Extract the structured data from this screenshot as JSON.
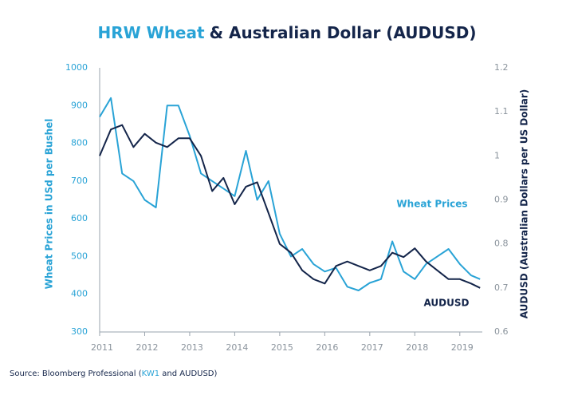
{
  "chart_data": {
    "type": "line",
    "title": [
      "HRW Wheat",
      "& Australian Dollar (AUDUSD)"
    ],
    "title_colors": [
      "#29a3d6",
      "#14254a"
    ],
    "source": [
      "Source: Bloomberg Professional (",
      "KW1",
      " and AUDUSD)"
    ],
    "y_label": "Wheat Prices in USd per Bushel",
    "y2_label": "AUDUSD (Australian Dollars per US Dollar)",
    "xlim": [
      2011,
      2019.5
    ],
    "xticks": [
      2011,
      2012,
      2013,
      2014,
      2015,
      2016,
      2017,
      2018,
      2019
    ],
    "ylim": [
      300,
      1000
    ],
    "yticks": [
      300,
      400,
      500,
      600,
      700,
      800,
      900,
      1000
    ],
    "y2lim": [
      0.6,
      1.2
    ],
    "y2ticks": [
      0.6,
      0.7,
      0.8,
      0.9,
      1,
      1.1,
      1.2
    ],
    "x": [
      2011,
      2011.25,
      2011.5,
      2011.75,
      2012,
      2012.25,
      2012.5,
      2012.75,
      2013,
      2013.25,
      2013.5,
      2013.75,
      2014,
      2014.25,
      2014.5,
      2014.75,
      2015,
      2015.25,
      2015.5,
      2015.75,
      2016,
      2016.25,
      2016.5,
      2016.75,
      2017,
      2017.25,
      2017.5,
      2017.75,
      2018,
      2018.25,
      2018.5,
      2018.75,
      2019,
      2019.25,
      2019.45
    ],
    "series": [
      {
        "name": "Wheat Prices",
        "color": "#29a3d6",
        "axis": "y",
        "values": [
          870,
          920,
          720,
          700,
          650,
          630,
          900,
          900,
          820,
          720,
          700,
          680,
          660,
          780,
          650,
          700,
          560,
          500,
          520,
          480,
          460,
          470,
          420,
          410,
          430,
          440,
          540,
          460,
          440,
          480,
          500,
          520,
          480,
          450,
          440
        ]
      },
      {
        "name": "AUDUSD",
        "color": "#14254a",
        "axis": "y2",
        "values": [
          1.0,
          1.06,
          1.07,
          1.02,
          1.05,
          1.03,
          1.02,
          1.04,
          1.04,
          1.0,
          0.92,
          0.95,
          0.89,
          0.93,
          0.94,
          0.87,
          0.8,
          0.78,
          0.74,
          0.72,
          0.71,
          0.75,
          0.76,
          0.75,
          0.74,
          0.75,
          0.78,
          0.77,
          0.79,
          0.76,
          0.74,
          0.72,
          0.72,
          0.71,
          0.7
        ]
      }
    ]
  }
}
